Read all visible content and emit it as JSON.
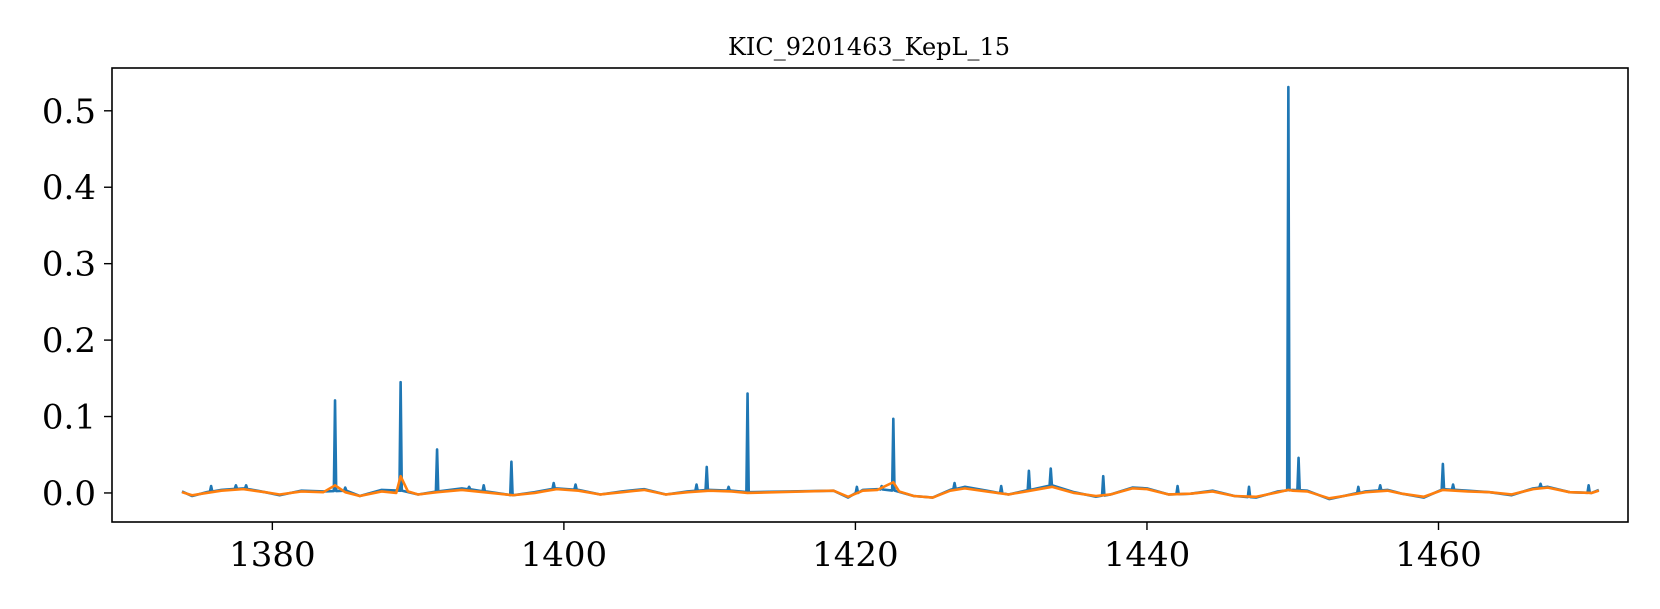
{
  "chart_data": {
    "type": "line",
    "title": "KIC_9201463_KepL_15",
    "xlabel": "",
    "ylabel": "",
    "xlim": [
      1369,
      1473
    ],
    "ylim": [
      -0.038,
      0.556
    ],
    "x_ticks": [
      1380,
      1400,
      1420,
      1440,
      1460
    ],
    "x_tick_labels": [
      "1380",
      "1400",
      "1420",
      "1440",
      "1460"
    ],
    "y_ticks": [
      0.0,
      0.1,
      0.2,
      0.3,
      0.4,
      0.5
    ],
    "y_tick_labels": [
      "0.0",
      "0.1",
      "0.2",
      "0.3",
      "0.4",
      "0.5"
    ],
    "grid": false,
    "series": [
      {
        "color": "#1f77b4",
        "baseline": [
          [
            1373.8,
            0.002
          ],
          [
            1374.5,
            -0.004
          ],
          [
            1375.5,
            0.001
          ],
          [
            1376.5,
            0.004
          ],
          [
            1378.0,
            0.006
          ],
          [
            1379.5,
            0.001
          ],
          [
            1380.5,
            -0.003
          ],
          [
            1382.0,
            0.003
          ],
          [
            1383.5,
            0.002
          ],
          [
            1385.0,
            0.003
          ],
          [
            1386.0,
            -0.004
          ],
          [
            1387.5,
            0.004
          ],
          [
            1388.8,
            0.003
          ],
          [
            1390.0,
            -0.002
          ],
          [
            1391.3,
            0.002
          ],
          [
            1393.0,
            0.006
          ],
          [
            1395.0,
            0.001
          ],
          [
            1396.5,
            -0.003
          ],
          [
            1398.0,
            0.001
          ],
          [
            1399.5,
            0.006
          ],
          [
            1401.0,
            0.004
          ],
          [
            1402.5,
            -0.002
          ],
          [
            1404.0,
            0.002
          ],
          [
            1405.5,
            0.005
          ],
          [
            1407.0,
            -0.002
          ],
          [
            1408.5,
            0.002
          ],
          [
            1410.0,
            0.004
          ],
          [
            1411.5,
            0.003
          ],
          [
            1412.6,
            0.001
          ],
          [
            1418.5,
            0.003
          ],
          [
            1419.5,
            -0.006
          ],
          [
            1420.5,
            0.004
          ],
          [
            1421.5,
            0.005
          ],
          [
            1422.7,
            0.003
          ],
          [
            1424.0,
            -0.004
          ],
          [
            1425.3,
            -0.006
          ],
          [
            1426.5,
            0.004
          ],
          [
            1427.5,
            0.008
          ],
          [
            1429.0,
            0.003
          ],
          [
            1430.5,
            -0.002
          ],
          [
            1432.0,
            0.004
          ],
          [
            1433.5,
            0.01
          ],
          [
            1435.0,
            0.001
          ],
          [
            1436.5,
            -0.005
          ],
          [
            1437.5,
            -0.002
          ],
          [
            1439.0,
            0.007
          ],
          [
            1440.0,
            0.006
          ],
          [
            1441.5,
            -0.002
          ],
          [
            1443.0,
            -0.001
          ],
          [
            1444.5,
            0.003
          ],
          [
            1446.0,
            -0.004
          ],
          [
            1447.5,
            -0.006
          ],
          [
            1449.0,
            0.002
          ],
          [
            1450.0,
            0.004
          ],
          [
            1451.0,
            0.003
          ],
          [
            1452.5,
            -0.008
          ],
          [
            1453.5,
            -0.004
          ],
          [
            1455.0,
            0.002
          ],
          [
            1456.5,
            0.004
          ],
          [
            1457.5,
            -0.001
          ],
          [
            1459.0,
            -0.006
          ],
          [
            1460.3,
            0.005
          ],
          [
            1462.0,
            0.003
          ],
          [
            1463.5,
            0.001
          ],
          [
            1465.0,
            -0.003
          ],
          [
            1466.5,
            0.006
          ],
          [
            1467.5,
            0.008
          ],
          [
            1469.0,
            0.001
          ],
          [
            1470.5,
            0.0
          ],
          [
            1471.0,
            0.004
          ]
        ],
        "spikes": [
          [
            1375.8,
            0.009
          ],
          [
            1377.5,
            0.01
          ],
          [
            1378.2,
            0.01
          ],
          [
            1384.3,
            0.121
          ],
          [
            1385.0,
            0.007
          ],
          [
            1388.8,
            0.145
          ],
          [
            1391.3,
            0.057
          ],
          [
            1393.5,
            0.008
          ],
          [
            1394.5,
            0.01
          ],
          [
            1396.4,
            0.041
          ],
          [
            1399.3,
            0.013
          ],
          [
            1400.8,
            0.011
          ],
          [
            1409.1,
            0.011
          ],
          [
            1409.8,
            0.034
          ],
          [
            1411.3,
            0.008
          ],
          [
            1412.6,
            0.13
          ],
          [
            1420.1,
            0.008
          ],
          [
            1421.8,
            0.009
          ],
          [
            1422.6,
            0.097
          ],
          [
            1426.8,
            0.013
          ],
          [
            1430.0,
            0.009
          ],
          [
            1431.9,
            0.029
          ],
          [
            1433.4,
            0.032
          ],
          [
            1437.0,
            0.022
          ],
          [
            1442.1,
            0.009
          ],
          [
            1447.0,
            0.008
          ],
          [
            1449.7,
            0.531
          ],
          [
            1450.4,
            0.046
          ],
          [
            1454.5,
            0.008
          ],
          [
            1456.0,
            0.01
          ],
          [
            1460.3,
            0.038
          ],
          [
            1461.0,
            0.011
          ],
          [
            1467.0,
            0.012
          ],
          [
            1470.3,
            0.01
          ]
        ]
      },
      {
        "color": "#ff7f0e",
        "points": [
          [
            1373.8,
            0.001
          ],
          [
            1374.5,
            -0.003
          ],
          [
            1375.5,
            0.0
          ],
          [
            1376.5,
            0.003
          ],
          [
            1378.0,
            0.005
          ],
          [
            1379.5,
            0.001
          ],
          [
            1380.5,
            -0.002
          ],
          [
            1382.0,
            0.002
          ],
          [
            1383.5,
            0.001
          ],
          [
            1384.3,
            0.01
          ],
          [
            1385.0,
            0.001
          ],
          [
            1386.0,
            -0.004
          ],
          [
            1387.5,
            0.002
          ],
          [
            1388.5,
            0.0
          ],
          [
            1388.8,
            0.022
          ],
          [
            1389.3,
            0.002
          ],
          [
            1390.0,
            -0.002
          ],
          [
            1391.3,
            0.001
          ],
          [
            1393.0,
            0.004
          ],
          [
            1395.0,
            0.0
          ],
          [
            1396.5,
            -0.003
          ],
          [
            1398.0,
            0.0
          ],
          [
            1399.5,
            0.005
          ],
          [
            1401.0,
            0.003
          ],
          [
            1402.5,
            -0.002
          ],
          [
            1404.0,
            0.001
          ],
          [
            1405.5,
            0.004
          ],
          [
            1407.0,
            -0.002
          ],
          [
            1408.5,
            0.001
          ],
          [
            1410.0,
            0.003
          ],
          [
            1411.5,
            0.002
          ],
          [
            1412.6,
            0.0
          ],
          [
            1418.5,
            0.003
          ],
          [
            1419.5,
            -0.005
          ],
          [
            1420.5,
            0.003
          ],
          [
            1421.5,
            0.004
          ],
          [
            1422.6,
            0.014
          ],
          [
            1423.0,
            0.002
          ],
          [
            1424.0,
            -0.004
          ],
          [
            1425.3,
            -0.006
          ],
          [
            1426.5,
            0.003
          ],
          [
            1427.5,
            0.006
          ],
          [
            1429.0,
            0.002
          ],
          [
            1430.5,
            -0.002
          ],
          [
            1432.0,
            0.003
          ],
          [
            1433.5,
            0.008
          ],
          [
            1435.0,
            0.0
          ],
          [
            1436.5,
            -0.004
          ],
          [
            1437.5,
            -0.002
          ],
          [
            1439.0,
            0.006
          ],
          [
            1440.0,
            0.005
          ],
          [
            1441.5,
            -0.002
          ],
          [
            1443.0,
            -0.001
          ],
          [
            1444.5,
            0.002
          ],
          [
            1446.0,
            -0.004
          ],
          [
            1447.5,
            -0.005
          ],
          [
            1449.0,
            0.001
          ],
          [
            1449.7,
            0.004
          ],
          [
            1450.0,
            0.003
          ],
          [
            1451.0,
            0.002
          ],
          [
            1452.5,
            -0.007
          ],
          [
            1453.5,
            -0.004
          ],
          [
            1455.0,
            0.001
          ],
          [
            1456.5,
            0.003
          ],
          [
            1457.5,
            -0.001
          ],
          [
            1459.0,
            -0.005
          ],
          [
            1460.3,
            0.004
          ],
          [
            1462.0,
            0.002
          ],
          [
            1463.5,
            0.001
          ],
          [
            1465.0,
            -0.002
          ],
          [
            1466.5,
            0.005
          ],
          [
            1467.5,
            0.007
          ],
          [
            1469.0,
            0.001
          ],
          [
            1470.5,
            0.0
          ],
          [
            1471.0,
            0.003
          ]
        ]
      }
    ]
  }
}
